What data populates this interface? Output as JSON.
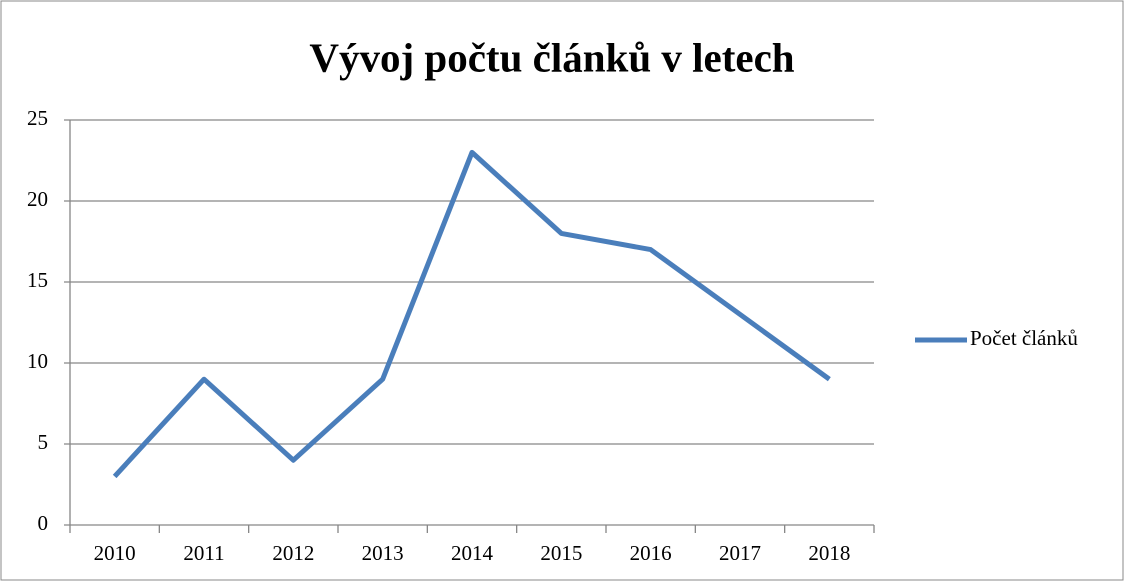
{
  "chart_data": {
    "type": "line",
    "title": "Vývoj počtu článků v letech",
    "categories": [
      "2010",
      "2011",
      "2012",
      "2013",
      "2014",
      "2015",
      "2016",
      "2017",
      "2018"
    ],
    "series": [
      {
        "name": "Počet článků",
        "color": "#4a7ebb",
        "values": [
          3,
          9,
          4,
          9,
          23,
          18,
          17,
          13,
          9
        ]
      }
    ],
    "ylim": [
      0,
      25
    ],
    "yticks": [
      0,
      5,
      10,
      15,
      20,
      25
    ],
    "grid": true,
    "legend": "right"
  }
}
